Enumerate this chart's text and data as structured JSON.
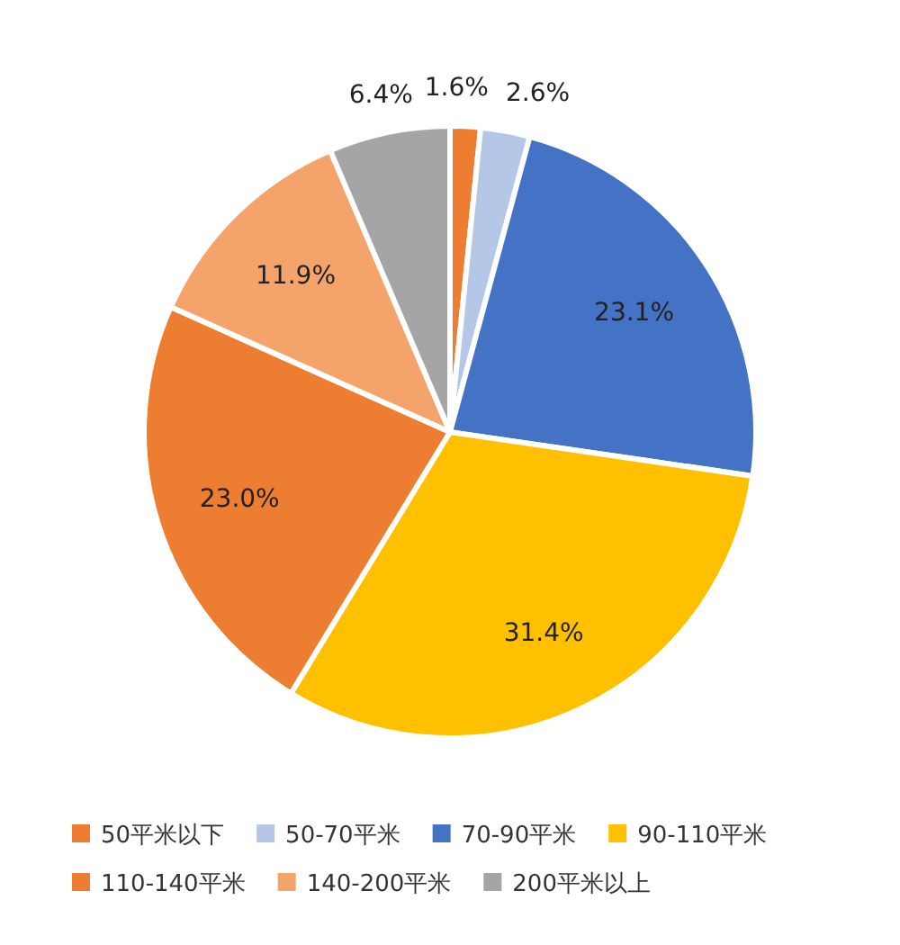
{
  "chart_data": {
    "type": "pie",
    "categories": [
      "50平米以下",
      "50-70平米",
      "70-90平米",
      "90-110平米",
      "110-140平米",
      "140-200平米",
      "200平米以上"
    ],
    "values": [
      1.6,
      2.6,
      23.1,
      31.4,
      23.0,
      11.9,
      6.4
    ],
    "colors": [
      "#ed7d31",
      "#b4c7e7",
      "#4472c4",
      "#ffc000",
      "#ed7d31",
      "#f4a46a",
      "#a5a5a5"
    ],
    "value_labels": [
      "1.6%",
      "2.6%",
      "23.1%",
      "31.4%",
      "23.0%",
      "11.9%",
      "6.4%"
    ],
    "legend": "bottom"
  }
}
